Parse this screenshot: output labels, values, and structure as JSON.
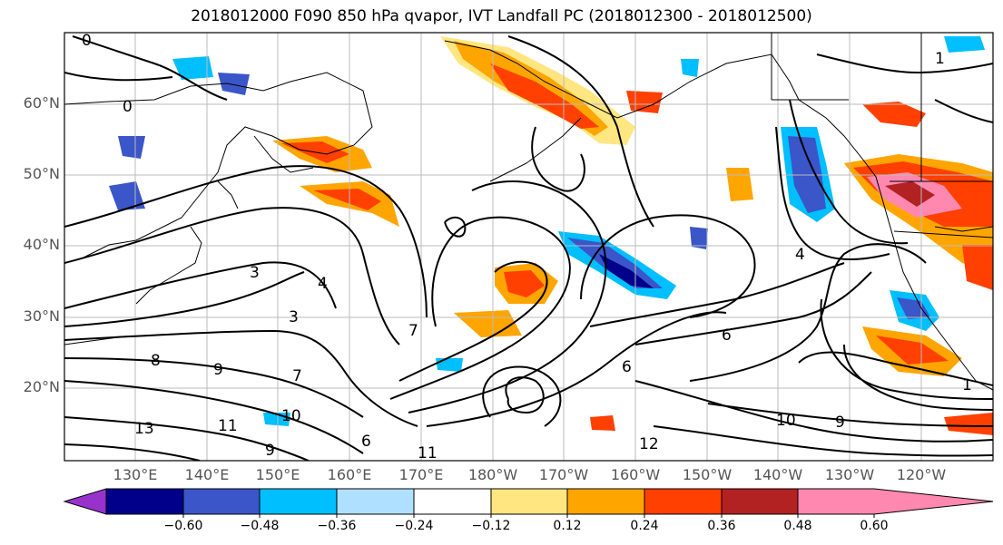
{
  "title": "2018012000 F090 850 hPa qvapor, IVT Landfall PC (2018012300 - 2018012500)",
  "latitude_labels": [
    "60°N",
    "50°N",
    "40°N",
    "30°N",
    "20°N"
  ],
  "longitude_labels": [
    "130°E",
    "140°E",
    "150°E",
    "160°E",
    "170°E",
    "180°W",
    "170°W",
    "160°W",
    "150°W",
    "140°W",
    "130°W",
    "120°W"
  ],
  "colorbar": {
    "ticks": [
      "−0.60",
      "−0.48",
      "−0.36",
      "−0.24",
      "−0.12",
      "0.12",
      "0.24",
      "0.36",
      "0.48",
      "0.60"
    ],
    "colors": [
      "#9932cc",
      "#00008b",
      "#3a56c8",
      "#00bfff",
      "#b0e0ff",
      "#ffffff",
      "#ffe680",
      "#ffa500",
      "#ff4000",
      "#b22222",
      "#ff88b0"
    ]
  },
  "contour_labels": [
    "0",
    "0",
    "3",
    "3",
    "4",
    "7",
    "8",
    "9",
    "7",
    "10",
    "11",
    "13",
    "9",
    "6",
    "11",
    "12",
    "6",
    "6",
    "10",
    "9",
    "4",
    "1",
    "1"
  ]
}
